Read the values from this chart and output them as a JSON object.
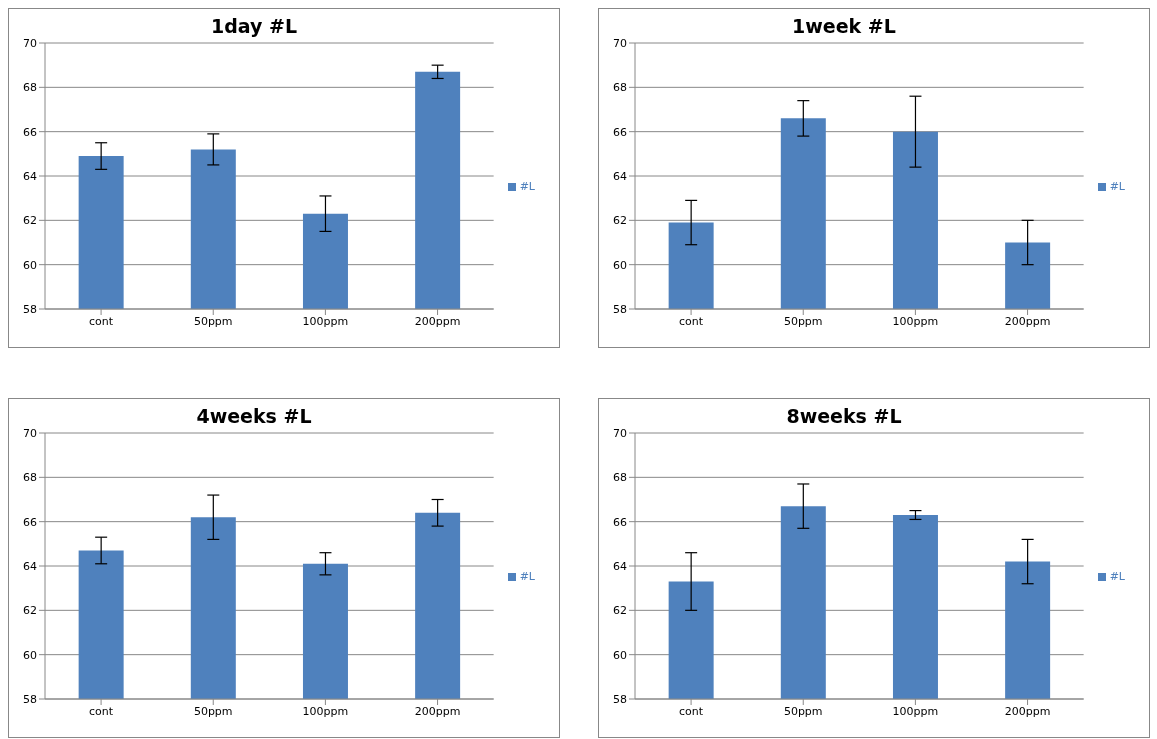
{
  "chart_data": [
    {
      "type": "bar",
      "title": "1day #L",
      "categories": [
        "cont",
        "50ppm",
        "100ppm",
        "200ppm"
      ],
      "series": [
        {
          "name": "#L",
          "color": "#4f81bd",
          "values": [
            64.9,
            65.2,
            62.3,
            68.7
          ],
          "errors": [
            0.6,
            0.7,
            0.8,
            0.3
          ]
        }
      ],
      "ylim": [
        58,
        70
      ],
      "yticks": [
        58,
        60,
        62,
        64,
        66,
        68,
        70
      ],
      "grid": "y",
      "legend": "right"
    },
    {
      "type": "bar",
      "title": "1week #L",
      "categories": [
        "cont",
        "50ppm",
        "100ppm",
        "200ppm"
      ],
      "series": [
        {
          "name": "#L",
          "color": "#4f81bd",
          "values": [
            61.9,
            66.6,
            66.0,
            61.0
          ],
          "errors": [
            1.0,
            0.8,
            1.6,
            1.0
          ]
        }
      ],
      "ylim": [
        58,
        70
      ],
      "yticks": [
        58,
        60,
        62,
        64,
        66,
        68,
        70
      ],
      "grid": "y",
      "legend": "right"
    },
    {
      "type": "bar",
      "title": "4weeks #L",
      "categories": [
        "cont",
        "50ppm",
        "100ppm",
        "200ppm"
      ],
      "series": [
        {
          "name": "#L",
          "color": "#4f81bd",
          "values": [
            64.7,
            66.2,
            64.1,
            66.4
          ],
          "errors": [
            0.6,
            1.0,
            0.5,
            0.6
          ]
        }
      ],
      "ylim": [
        58,
        70
      ],
      "yticks": [
        58,
        60,
        62,
        64,
        66,
        68,
        70
      ],
      "grid": "y",
      "legend": "right"
    },
    {
      "type": "bar",
      "title": "8weeks #L",
      "categories": [
        "cont",
        "50ppm",
        "100ppm",
        "200ppm"
      ],
      "series": [
        {
          "name": "#L",
          "color": "#4f81bd",
          "values": [
            63.3,
            66.7,
            66.3,
            64.2
          ],
          "errors": [
            1.3,
            1.0,
            0.2,
            1.0
          ]
        }
      ],
      "ylim": [
        58,
        70
      ],
      "yticks": [
        58,
        60,
        62,
        64,
        66,
        68,
        70
      ],
      "grid": "y",
      "legend": "right"
    }
  ]
}
